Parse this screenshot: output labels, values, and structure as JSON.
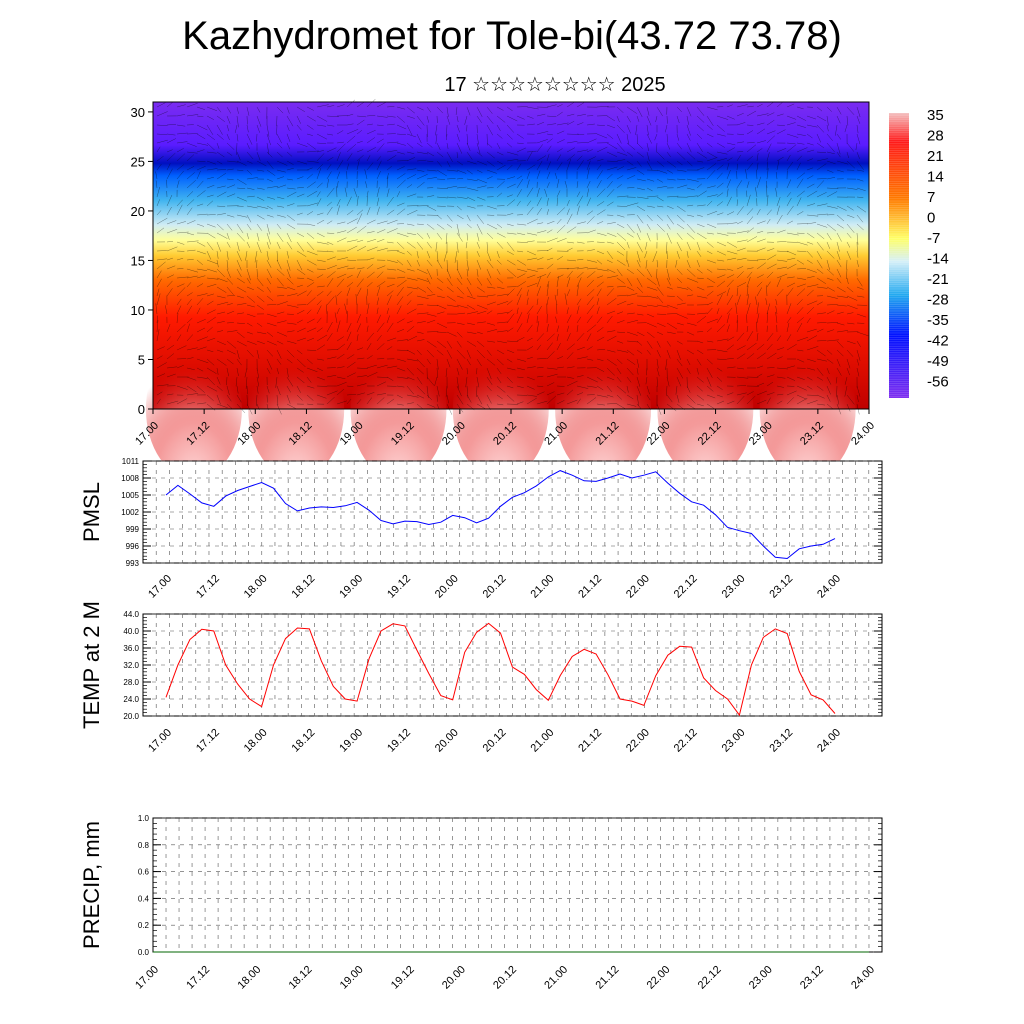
{
  "title": "Kazhydromet for Tole-bi(43.72 73.78)",
  "subtitle": "17 ☆☆☆☆☆☆☆☆ 2025",
  "colors": {
    "pmsl_line": "#0000ff",
    "temp_line": "#ff0000",
    "precip_line": "#006400"
  },
  "chart_data": [
    {
      "type": "heatmap",
      "title": "",
      "xlabel": "",
      "ylabel": "",
      "x_ticks": [
        "17.00",
        "17.12",
        "18.00",
        "18.12",
        "19.00",
        "19.12",
        "20.00",
        "20.12",
        "21.00",
        "21.12",
        "22.00",
        "22.12",
        "23.00",
        "23.12",
        "24.00"
      ],
      "y_ticks": [
        "0",
        "5",
        "10",
        "15",
        "20",
        "25",
        "30"
      ],
      "ylim": [
        0,
        31
      ],
      "colorbar_labels": [
        "35",
        "28",
        "21",
        "14",
        "7",
        "0",
        "-7",
        "-14",
        "-21",
        "-28",
        "-35",
        "-42",
        "-49",
        "-56"
      ],
      "overlay": "wind vectors",
      "z_profile_note": "temperature decreasing with height; warm daytime maxima near surface",
      "colorscale": [
        "#f2b8b8",
        "#ff0000",
        "#ff9900",
        "#ffff66",
        "#8fd8f0",
        "#00a0ff",
        "#0000ff",
        "#6a00ff"
      ]
    },
    {
      "type": "line",
      "ylabel": "PMSL",
      "x_ticks": [
        "17.00",
        "17.12",
        "18.00",
        "18.12",
        "19.00",
        "19.12",
        "20.00",
        "20.12",
        "21.00",
        "21.12",
        "22.00",
        "22.12",
        "23.00",
        "23.12",
        "24.00"
      ],
      "y_ticks": [
        "1011",
        "1008",
        "1005",
        "1002",
        "999",
        "996",
        "993"
      ],
      "ylim": [
        993,
        1011
      ],
      "series": [
        {
          "values": [
            1005,
            1006.7,
            1005.2,
            1003.6,
            1003,
            1004.8,
            1005.8,
            1006.5,
            1007.2,
            1006.2,
            1003.5,
            1002.2,
            1002.7,
            1002.9,
            1002.8,
            1003.1,
            1003.7,
            1002.3,
            1000.5,
            999.9,
            1000.4,
            1000.3,
            999.8,
            1000.2,
            1001.4,
            1001,
            1000.1,
            1000.9,
            1003,
            1004.6,
            1005.4,
            1006.6,
            1008.2,
            1009.3,
            1008.5,
            1007.5,
            1007.4,
            1008,
            1008.7,
            1008,
            1008.5,
            1009.1,
            1007.1,
            1005.3,
            1003.8,
            1003.2,
            1001.5,
            999.3,
            998.7,
            998.2,
            996,
            994,
            993.8,
            995.5,
            996,
            996.3,
            997.3
          ]
        }
      ]
    },
    {
      "type": "line",
      "ylabel": "TEMP at 2 M",
      "x_ticks": [
        "17.00",
        "17.12",
        "18.00",
        "18.12",
        "19.00",
        "19.12",
        "20.00",
        "20.12",
        "21.00",
        "21.12",
        "22.00",
        "22.12",
        "23.00",
        "23.12",
        "24.00"
      ],
      "y_ticks": [
        "44.0",
        "40.0",
        "36.0",
        "32.0",
        "28.0",
        "24.0",
        "20.0"
      ],
      "ylim": [
        20,
        44
      ],
      "series": [
        {
          "values": [
            24.4,
            32,
            38,
            40.4,
            40,
            32,
            27.5,
            24,
            22.2,
            32,
            38.2,
            40.7,
            40.5,
            33,
            27,
            24,
            23.5,
            33.5,
            40,
            41.7,
            41.2,
            35.5,
            30,
            24.8,
            23.8,
            35,
            39.7,
            41.8,
            39.5,
            31.5,
            29.8,
            26.2,
            23.7,
            29.5,
            34,
            35.7,
            34.6,
            29.7,
            24,
            23.5,
            22.5,
            29.5,
            34.3,
            36.4,
            36.2,
            29,
            26,
            24,
            20.2,
            32,
            38.5,
            40.5,
            39.4,
            30.5,
            25,
            23.8,
            20.6
          ]
        }
      ]
    },
    {
      "type": "line",
      "ylabel": "PRECIP, mm",
      "x_ticks": [
        "17.00",
        "17.12",
        "18.00",
        "18.12",
        "19.00",
        "19.12",
        "20.00",
        "20.12",
        "21.00",
        "21.12",
        "22.00",
        "22.12",
        "23.00",
        "23.12",
        "24.00"
      ],
      "y_ticks": [
        "1.0",
        "0.8",
        "0.6",
        "0.4",
        "0.2",
        "0.0"
      ],
      "ylim": [
        0,
        1
      ],
      "series": [
        {
          "values": [
            0,
            0,
            0,
            0,
            0,
            0,
            0,
            0,
            0,
            0,
            0,
            0,
            0,
            0,
            0,
            0,
            0,
            0,
            0,
            0,
            0,
            0,
            0,
            0,
            0,
            0,
            0,
            0,
            0,
            0,
            0,
            0,
            0,
            0,
            0,
            0,
            0,
            0,
            0,
            0,
            0,
            0,
            0,
            0,
            0,
            0,
            0,
            0,
            0,
            0,
            0,
            0,
            0,
            0,
            0,
            0,
            0
          ]
        }
      ]
    }
  ]
}
